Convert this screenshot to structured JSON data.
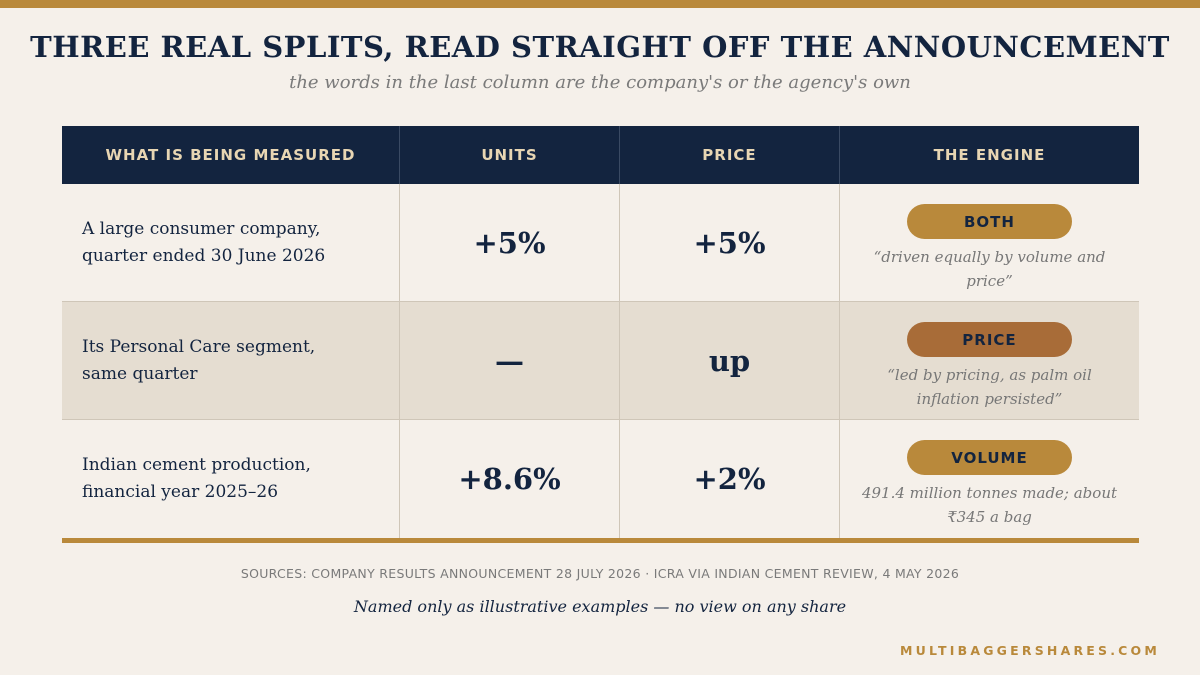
{
  "title": "THREE REAL SPLITS, READ STRAIGHT OFF THE ANNOUNCEMENT",
  "subtitle": "the words in the last column are the company's or the agency's own",
  "table": {
    "headers": [
      "WHAT IS BEING MEASURED",
      "UNITS",
      "PRICE",
      "THE ENGINE"
    ],
    "rows": [
      {
        "label": "A large consumer company,\nquarter ended 30 June 2026",
        "units": "+5%",
        "price": "+5%",
        "engine": "BOTH",
        "engine_color": "#b9893b",
        "quote": "“driven equally by volume and price”"
      },
      {
        "label": "Its Personal Care segment,\nsame quarter",
        "units": "—",
        "price": "up",
        "engine": "PRICE",
        "engine_color": "#a86c38",
        "quote": "“led by pricing, as palm oil inflation persisted”"
      },
      {
        "label": "Indian cement production,\nfinancial year 2025–26",
        "units": "+8.6%",
        "price": "+2%",
        "engine": "VOLUME",
        "engine_color": "#b9893b",
        "quote": "491.4 million tonnes made; about ₹345 a bag"
      }
    ]
  },
  "sources": "SOURCES: COMPANY RESULTS ANNOUNCEMENT 28 JULY 2026 · ICRA VIA INDIAN CEMENT REVIEW, 4 MAY 2026",
  "disclaimer": "Named only as illustrative examples — no view on any share",
  "brand": "MULTIBAGGERSHARES.COM",
  "colors": {
    "accent": "#b9893b",
    "navy": "#13243f",
    "background": "#f5f0ea"
  }
}
